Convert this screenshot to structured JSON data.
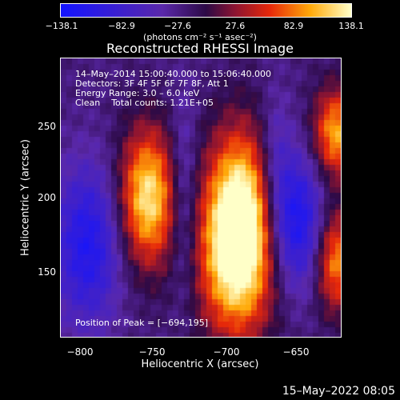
{
  "colorbar": {
    "ticks": [
      "−138.1",
      "−82.9",
      "−27.6",
      "27.6",
      "82.9",
      "138.1"
    ],
    "units_text": "(photons cm⁻² s⁻¹ asec⁻²)"
  },
  "plot": {
    "title": "Reconstructed RHESSI Image",
    "info_lines": "14–May–2014 15:00:40.000 to 15:06:40.000\nDetectors: 3F 4F 5F 6F 7F 8F, Att 1\nEnergy Range: 3.0 – 6.0 keV\nClean    Total counts: 1.21E+05",
    "peak_text": "Position of Peak = [−694,195]",
    "y_ticks": [
      "250",
      "200",
      "150"
    ],
    "x_ticks": [
      "−800",
      "−750",
      "−700",
      "−650"
    ],
    "y_label": "Heliocentric Y (arcsec)",
    "x_label": "Heliocentric X (arcsec)"
  },
  "footer": {
    "date": "15–May–2022 08:05"
  }
}
